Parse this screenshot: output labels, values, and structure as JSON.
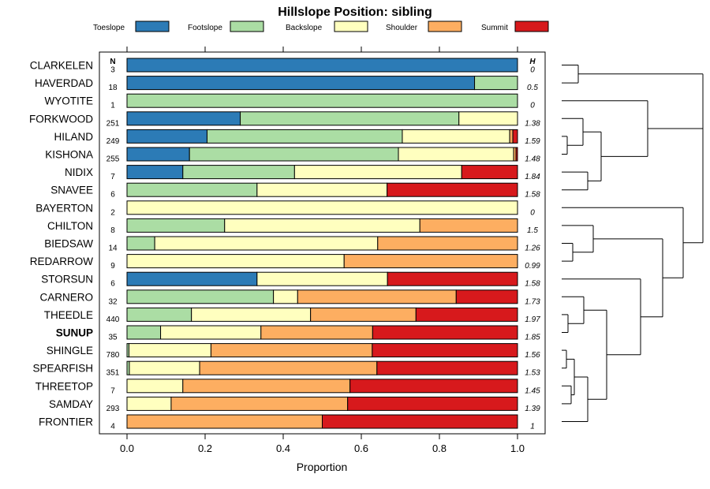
{
  "chart_data": {
    "type": "bar",
    "stacked": true,
    "orientation": "horizontal",
    "title": "Hillslope Position: sibling",
    "xlabel": "Proportion",
    "xlim": [
      0,
      1
    ],
    "x_ticks": [
      "0.0",
      "0.2",
      "0.4",
      "0.6",
      "0.8",
      "1.0"
    ],
    "n_header": "N",
    "h_header": "H",
    "colors": {
      "Toeslope": "#2C7BB6",
      "Footslope": "#ABDDA4",
      "Backslope": "#FFFFBF",
      "Shoulder": "#FDAE61",
      "Summit": "#D7191C"
    },
    "legend": [
      "Toeslope",
      "Footslope",
      "Backslope",
      "Shoulder",
      "Summit"
    ],
    "rows": [
      {
        "name": "CLARKELEN",
        "n": "3",
        "h": "0",
        "values": [
          1.0,
          0,
          0,
          0,
          0
        ]
      },
      {
        "name": "HAVERDAD",
        "n": "18",
        "h": "0.5",
        "values": [
          0.89,
          0.11,
          0,
          0,
          0
        ]
      },
      {
        "name": "WYOTITE",
        "n": "1",
        "h": "0",
        "values": [
          0,
          1.0,
          0,
          0,
          0
        ]
      },
      {
        "name": "FORKWOOD",
        "n": "251",
        "h": "1.38",
        "values": [
          0.29,
          0.56,
          0.15,
          0,
          0
        ]
      },
      {
        "name": "HILAND",
        "n": "249",
        "h": "1.59",
        "values": [
          0.205,
          0.5,
          0.275,
          0.008,
          0.012
        ]
      },
      {
        "name": "KISHONA",
        "n": "255",
        "h": "1.48",
        "values": [
          0.16,
          0.535,
          0.295,
          0.006,
          0.004
        ]
      },
      {
        "name": "NIDIX",
        "n": "7",
        "h": "1.84",
        "values": [
          0.143,
          0.286,
          0.428,
          0,
          0.143
        ]
      },
      {
        "name": "SNAVEE",
        "n": "6",
        "h": "1.58",
        "values": [
          0,
          0.333,
          0.333,
          0,
          0.334
        ]
      },
      {
        "name": "BAYERTON",
        "n": "2",
        "h": "0",
        "values": [
          0,
          0,
          1.0,
          0,
          0
        ]
      },
      {
        "name": "CHILTON",
        "n": "8",
        "h": "1.5",
        "values": [
          0,
          0.25,
          0.5,
          0.25,
          0
        ]
      },
      {
        "name": "BIEDSAW",
        "n": "14",
        "h": "1.26",
        "values": [
          0,
          0.071,
          0.571,
          0.358,
          0
        ]
      },
      {
        "name": "REDARROW",
        "n": "9",
        "h": "0.99",
        "values": [
          0,
          0,
          0.556,
          0.444,
          0
        ]
      },
      {
        "name": "STORSUN",
        "n": "6",
        "h": "1.58",
        "values": [
          0.333,
          0,
          0.334,
          0,
          0.333
        ]
      },
      {
        "name": "CARNERO",
        "n": "32",
        "h": "1.73",
        "values": [
          0,
          0.375,
          0.062,
          0.406,
          0.157
        ]
      },
      {
        "name": "THEEDLE",
        "n": "440",
        "h": "1.97",
        "values": [
          0,
          0.165,
          0.305,
          0.27,
          0.26
        ]
      },
      {
        "name": "SUNUP",
        "n": "35",
        "h": "1.85",
        "values": [
          0,
          0.086,
          0.257,
          0.286,
          0.371
        ],
        "bold": true
      },
      {
        "name": "SHINGLE",
        "n": "780",
        "h": "1.56",
        "values": [
          0,
          0.005,
          0.21,
          0.413,
          0.372
        ]
      },
      {
        "name": "SPEARFISH",
        "n": "351",
        "h": "1.53",
        "values": [
          0,
          0.006,
          0.18,
          0.454,
          0.36
        ]
      },
      {
        "name": "THREETOP",
        "n": "7",
        "h": "1.45",
        "values": [
          0,
          0,
          0.143,
          0.428,
          0.429
        ]
      },
      {
        "name": "SAMDAY",
        "n": "293",
        "h": "1.39",
        "values": [
          0,
          0,
          0.113,
          0.452,
          0.435
        ]
      },
      {
        "name": "FRONTIER",
        "n": "4",
        "h": "1",
        "values": [
          0,
          0,
          0,
          0.5,
          0.5
        ]
      }
    ]
  }
}
